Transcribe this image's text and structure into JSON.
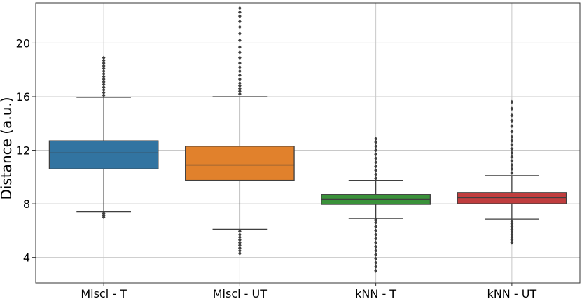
{
  "chart_data": {
    "type": "box",
    "title": "",
    "xlabel": "",
    "ylabel": "Distance (a.u.)",
    "ylim": [
      2.1,
      23.0
    ],
    "yticks": [
      4,
      8,
      12,
      16,
      20
    ],
    "grid": true,
    "categories": [
      "Miscl - T",
      "Miscl - UT",
      "kNN - T",
      "kNN - UT"
    ],
    "boxes": [
      {
        "label": "Miscl - T",
        "color": "#3274a1",
        "whisker_low": 7.4,
        "q1": 10.6,
        "median": 11.8,
        "q3": 12.7,
        "whisker_high": 15.95,
        "outliers_low": [
          7.0,
          7.15,
          7.3
        ],
        "outliers_high": [
          16.1,
          16.3,
          16.5,
          16.7,
          16.9,
          17.1,
          17.3,
          17.5,
          17.7,
          17.9,
          18.1,
          18.3,
          18.5,
          18.7,
          18.9
        ]
      },
      {
        "label": "Miscl - UT",
        "color": "#e1812c",
        "whisker_low": 6.1,
        "q1": 9.75,
        "median": 10.9,
        "q3": 12.3,
        "whisker_high": 16.0,
        "outliers_low": [
          4.3,
          4.5,
          4.7,
          4.9,
          5.1,
          5.3,
          5.5,
          5.7,
          5.95
        ],
        "outliers_high": [
          16.2,
          16.4,
          16.6,
          16.8,
          17.0,
          17.3,
          17.6,
          17.9,
          18.2,
          18.5,
          18.9,
          19.3,
          19.7,
          20.2,
          20.7,
          21.2,
          21.6,
          22.0,
          22.3,
          22.6
        ]
      },
      {
        "label": "kNN - T",
        "color": "#3a923a",
        "whisker_low": 6.9,
        "q1": 7.95,
        "median": 8.35,
        "q3": 8.7,
        "whisker_high": 9.75,
        "outliers_low": [
          3.0,
          3.3,
          3.6,
          3.9,
          4.2,
          4.5,
          4.8,
          5.1,
          5.4,
          5.7,
          6.0,
          6.3,
          6.6,
          6.8
        ],
        "outliers_high": [
          9.9,
          10.2,
          10.5,
          10.8,
          11.1,
          11.4,
          11.7,
          12.0,
          12.3,
          12.6,
          12.85
        ]
      },
      {
        "label": "kNN - UT",
        "color": "#c03d3e",
        "whisker_low": 6.85,
        "q1": 8.0,
        "median": 8.45,
        "q3": 8.85,
        "whisker_high": 10.1,
        "outliers_low": [
          5.1,
          5.3,
          5.5,
          5.7,
          5.9,
          6.1,
          6.3,
          6.5,
          6.7
        ],
        "outliers_high": [
          10.3,
          10.6,
          10.9,
          11.2,
          11.5,
          11.8,
          12.1,
          12.4,
          12.7,
          13.0,
          13.4,
          13.8,
          14.2,
          14.6,
          15.1,
          15.6
        ]
      }
    ]
  }
}
